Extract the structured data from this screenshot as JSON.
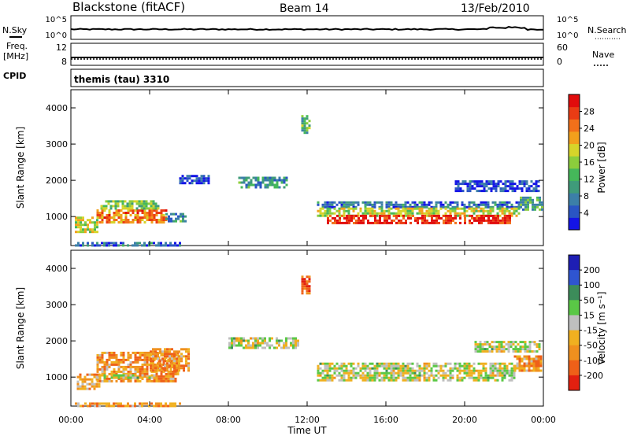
{
  "header": {
    "station": "Blackstone (fitACF)",
    "beam": "Beam 14",
    "date": "13/Feb/2010"
  },
  "strips": {
    "nsky_label": "N.Sky",
    "nsky_ticks": [
      "10^5",
      "10^0"
    ],
    "nsearch_label": "N.Search",
    "nsearch_ticks": [
      "10^5",
      "10^0"
    ],
    "freq_label_1": "Freq.",
    "freq_label_2": "[MHz]",
    "freq_ticks": [
      "12",
      "8"
    ],
    "nave_label": "Nave",
    "nave_ticks": [
      "60",
      "0"
    ],
    "cpid_label": "CPID",
    "cpid_value": "themis (tau) 3310"
  },
  "chart_data": [
    {
      "type": "heatmap",
      "panel": "power",
      "ylabel": "Slant Range [km]",
      "ylim": [
        200,
        4500
      ],
      "yticks": [
        "1000",
        "2000",
        "3000",
        "4000"
      ],
      "xlim": [
        0,
        24
      ],
      "xticks": [
        "00:00",
        "04:00",
        "08:00",
        "12:00",
        "16:00",
        "20:00",
        "00:00"
      ],
      "colorbar": {
        "label": "Power [dB]",
        "ticks": [
          "4",
          "8",
          "12",
          "16",
          "20",
          "24",
          "28"
        ],
        "colors": [
          "#1414e6",
          "#2a55c4",
          "#3c7fa8",
          "#3f9b7a",
          "#45b85a",
          "#8ccd3c",
          "#d7d42a",
          "#f2a01c",
          "#f2701a",
          "#ea3c14",
          "#e10c0c"
        ]
      },
      "regions": [
        {
          "t0": 0.2,
          "t1": 1.3,
          "r0": 600,
          "r1": 1000,
          "level": 0.55
        },
        {
          "t0": 1.3,
          "t1": 4.8,
          "r0": 850,
          "r1": 1200,
          "level": 0.75
        },
        {
          "t0": 1.5,
          "t1": 4.5,
          "r0": 1200,
          "r1": 1450,
          "level": 0.45
        },
        {
          "t0": 4.8,
          "t1": 5.8,
          "r0": 900,
          "r1": 1100,
          "level": 0.3
        },
        {
          "t0": 0.2,
          "t1": 5.5,
          "r0": 200,
          "r1": 300,
          "level": 0.2
        },
        {
          "t0": 5.5,
          "t1": 7.0,
          "r0": 1900,
          "r1": 2150,
          "level": 0.1
        },
        {
          "t0": 8.5,
          "t1": 11.0,
          "r0": 1800,
          "r1": 2100,
          "level": 0.3
        },
        {
          "t0": 11.7,
          "t1": 12.1,
          "r0": 3300,
          "r1": 3800,
          "level": 0.4
        },
        {
          "t0": 12.5,
          "t1": 22.8,
          "r0": 1250,
          "r1": 1420,
          "level": 0.2
        },
        {
          "t0": 12.5,
          "t1": 22.8,
          "r0": 1050,
          "r1": 1250,
          "level": 0.55
        },
        {
          "t0": 13.0,
          "t1": 22.3,
          "r0": 800,
          "r1": 1050,
          "level": 0.9
        },
        {
          "t0": 19.5,
          "t1": 23.8,
          "r0": 1700,
          "r1": 2000,
          "level": 0.1
        },
        {
          "t0": 22.8,
          "t1": 23.9,
          "r0": 1200,
          "r1": 1550,
          "level": 0.35
        }
      ]
    },
    {
      "type": "heatmap",
      "panel": "velocity",
      "ylabel": "Slant Range [km]",
      "ylim": [
        200,
        4500
      ],
      "yticks": [
        "1000",
        "2000",
        "3000",
        "4000"
      ],
      "xlim": [
        0,
        24
      ],
      "xticks": [
        "00:00",
        "04:00",
        "08:00",
        "12:00",
        "16:00",
        "20:00",
        "00:00"
      ],
      "xlabel": "Time UT",
      "colorbar": {
        "label": "Velocity [m s⁻¹]",
        "ticks": [
          "200",
          "100",
          "50",
          "15",
          "-15",
          "-50",
          "-100",
          "-200"
        ],
        "colors": [
          "#1e1eb4",
          "#2f55d0",
          "#3c8c5a",
          "#5ac846",
          "#bfbfbf",
          "#f0b020",
          "#f0901e",
          "#ef6018",
          "#e22010"
        ]
      },
      "regions": [
        {
          "t0": 0.3,
          "t1": 1.5,
          "r0": 700,
          "r1": 1100,
          "level": 0.35
        },
        {
          "t0": 1.3,
          "t1": 5.5,
          "r0": 900,
          "r1": 1700,
          "level": 0.3
        },
        {
          "t0": 1.3,
          "t1": 4.3,
          "r0": 950,
          "r1": 1080,
          "level": 0.5
        },
        {
          "t0": 4.0,
          "t1": 6.0,
          "r0": 1200,
          "r1": 1800,
          "level": 0.3
        },
        {
          "t0": 0.2,
          "t1": 5.5,
          "r0": 200,
          "r1": 300,
          "level": 0.3
        },
        {
          "t0": 8.0,
          "t1": 11.5,
          "r0": 1800,
          "r1": 2100,
          "level": 0.5
        },
        {
          "t0": 11.7,
          "t1": 12.1,
          "r0": 3300,
          "r1": 3800,
          "level": 0.15
        },
        {
          "t0": 12.5,
          "t1": 22.5,
          "r0": 900,
          "r1": 1400,
          "level": 0.5
        },
        {
          "t0": 20.5,
          "t1": 23.8,
          "r0": 1700,
          "r1": 2000,
          "level": 0.5
        },
        {
          "t0": 22.5,
          "t1": 23.9,
          "r0": 1200,
          "r1": 1600,
          "level": 0.3
        }
      ]
    }
  ]
}
